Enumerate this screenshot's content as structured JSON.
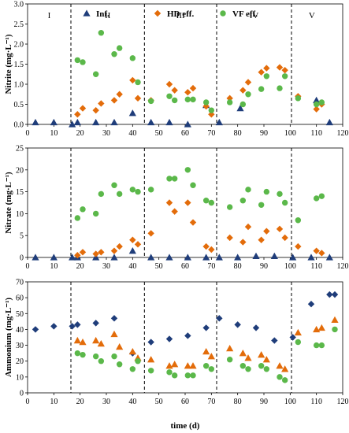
{
  "chart_data": [
    {
      "type": "scatter",
      "ylabel": "Nitrite (mg·L⁻¹)",
      "xlim": [
        0,
        120
      ],
      "ylim": [
        0,
        3.0
      ],
      "yticks": [
        "0.0",
        "0.5",
        "1.0",
        "1.5",
        "2.0",
        "2.5",
        "3.0"
      ],
      "xticks": [
        "0",
        "10",
        "20",
        "30",
        "40",
        "50",
        "60",
        "70",
        "80",
        "90",
        "100",
        "110",
        "120"
      ],
      "phase_lines": [
        16.5,
        44.5,
        72,
        100.5
      ],
      "phase_labels": [
        "I",
        "II",
        "III",
        "IV",
        "V"
      ],
      "legend": [
        "Inf.",
        "HD eff.",
        "VF eff."
      ],
      "series": [
        {
          "name": "Inf.",
          "marker": "triangle",
          "color": "#1f3d7a",
          "x": [
            3,
            10,
            17,
            19,
            26,
            33,
            40,
            47,
            54,
            61,
            68,
            73,
            81,
            110,
            115
          ],
          "y": [
            0.05,
            0.05,
            0.0,
            0.05,
            0.05,
            0.05,
            0.28,
            0.05,
            0.05,
            0.0,
            0.48,
            0.05,
            0.4,
            0.6,
            0.05
          ]
        },
        {
          "name": "HD eff.",
          "marker": "diamond",
          "color": "#e36c0a",
          "x": [
            19,
            21,
            26,
            28,
            33,
            35,
            40,
            42,
            47,
            54,
            56,
            61,
            63,
            68,
            70,
            77,
            82,
            84,
            89,
            91,
            96,
            98,
            103,
            110,
            112
          ],
          "y": [
            0.25,
            0.4,
            0.35,
            0.52,
            0.6,
            0.75,
            1.1,
            0.65,
            0.6,
            1.0,
            0.85,
            0.8,
            0.9,
            0.45,
            0.25,
            0.65,
            0.85,
            1.05,
            1.3,
            1.4,
            1.42,
            1.35,
            0.7,
            0.38,
            0.5
          ]
        },
        {
          "name": "VF eff.",
          "marker": "circle",
          "color": "#5bb84a",
          "x": [
            19,
            21,
            26,
            28,
            33,
            35,
            40,
            42,
            47,
            54,
            56,
            61,
            63,
            68,
            70,
            77,
            82,
            84,
            89,
            91,
            96,
            98,
            103,
            110,
            112
          ],
          "y": [
            1.6,
            1.55,
            1.25,
            2.28,
            1.75,
            1.9,
            1.65,
            1.05,
            0.58,
            0.7,
            0.6,
            0.62,
            0.62,
            0.55,
            0.35,
            0.55,
            0.5,
            0.75,
            0.88,
            1.2,
            0.9,
            1.2,
            0.65,
            0.5,
            0.55
          ]
        }
      ]
    },
    {
      "type": "scatter",
      "ylabel": "Nitrate (mg·L⁻¹)",
      "xlim": [
        0,
        120
      ],
      "ylim": [
        0,
        25
      ],
      "yticks": [
        "0",
        "5",
        "10",
        "15",
        "20",
        "25"
      ],
      "xticks": [
        "0",
        "10",
        "20",
        "30",
        "40",
        "50",
        "60",
        "70",
        "80",
        "90",
        "100",
        "110",
        "120"
      ],
      "phase_lines": [
        16.5,
        44.5,
        72,
        100.5
      ],
      "series": [
        {
          "name": "Inf.",
          "marker": "triangle",
          "color": "#1f3d7a",
          "x": [
            3,
            10,
            17,
            19,
            26,
            33,
            40,
            47,
            54,
            61,
            68,
            73,
            80,
            87,
            94,
            101,
            108,
            115
          ],
          "y": [
            0,
            0,
            0,
            0,
            0,
            0,
            1.5,
            0,
            0,
            0,
            0,
            0,
            0,
            0.3,
            0.3,
            0,
            0,
            0
          ]
        },
        {
          "name": "HD eff.",
          "marker": "diamond",
          "color": "#e36c0a",
          "x": [
            19,
            21,
            26,
            28,
            33,
            35,
            40,
            42,
            47,
            54,
            56,
            61,
            63,
            68,
            70,
            77,
            82,
            84,
            89,
            91,
            96,
            98,
            103,
            110,
            112
          ],
          "y": [
            0.5,
            1.2,
            0.8,
            1.2,
            1.5,
            2.5,
            4.0,
            3.0,
            5.5,
            12.5,
            10.5,
            12.5,
            8.0,
            2.5,
            1.8,
            4.5,
            3.5,
            7.0,
            4.0,
            6.0,
            6.5,
            4.5,
            2.5,
            1.5,
            1.0
          ]
        },
        {
          "name": "VF eff.",
          "marker": "circle",
          "color": "#5bb84a",
          "x": [
            19,
            21,
            26,
            28,
            33,
            35,
            40,
            42,
            47,
            54,
            56,
            61,
            63,
            68,
            70,
            77,
            82,
            84,
            89,
            91,
            96,
            98,
            103,
            110,
            112
          ],
          "y": [
            9.0,
            11.0,
            10.0,
            14.5,
            16.5,
            14.5,
            15.5,
            15.0,
            15.5,
            18.0,
            18.0,
            20.0,
            16.5,
            13.0,
            12.5,
            11.5,
            13.0,
            15.5,
            12.0,
            15.0,
            14.5,
            12.5,
            8.5,
            13.5,
            14.0
          ]
        }
      ]
    },
    {
      "type": "scatter",
      "ylabel": "Ammonium (mg·L⁻¹)",
      "xlabel": "time (d)",
      "xlim": [
        0,
        120
      ],
      "ylim": [
        0,
        70
      ],
      "yticks": [
        "0",
        "10",
        "20",
        "30",
        "40",
        "50",
        "60",
        "70"
      ],
      "xticks": [
        "0",
        "10",
        "20",
        "30",
        "40",
        "50",
        "60",
        "70",
        "80",
        "90",
        "100",
        "110",
        "120"
      ],
      "phase_lines": [
        16.5,
        44.5,
        72,
        100.5
      ],
      "series": [
        {
          "name": "Inf.",
          "marker": "diamond",
          "color": "#1f3d7a",
          "x": [
            3,
            10,
            17,
            19,
            26,
            33,
            40,
            47,
            54,
            61,
            68,
            73,
            80,
            87,
            94,
            101,
            108,
            115,
            117
          ],
          "y": [
            40,
            42,
            42,
            43,
            44,
            47,
            25,
            32,
            34,
            36,
            41,
            47,
            43,
            41,
            33,
            35,
            56,
            62,
            62
          ]
        },
        {
          "name": "HD eff.",
          "marker": "triangle",
          "color": "#e36c0a",
          "x": [
            19,
            21,
            26,
            28,
            33,
            35,
            40,
            42,
            47,
            54,
            56,
            61,
            63,
            68,
            70,
            77,
            82,
            84,
            89,
            91,
            96,
            98,
            103,
            110,
            112,
            117
          ],
          "y": [
            33,
            32,
            33,
            31,
            37,
            29,
            26,
            22,
            21,
            17,
            18,
            17,
            17,
            26,
            23,
            28,
            25,
            22,
            24,
            21,
            17,
            15,
            38,
            40,
            41,
            46
          ]
        },
        {
          "name": "VF eff.",
          "marker": "circle",
          "color": "#5bb84a",
          "x": [
            19,
            21,
            26,
            28,
            33,
            35,
            40,
            42,
            47,
            54,
            56,
            61,
            63,
            68,
            70,
            77,
            82,
            84,
            89,
            91,
            96,
            98,
            103,
            110,
            112,
            117
          ],
          "y": [
            25,
            24,
            23,
            20,
            23,
            18,
            15,
            20,
            14,
            13,
            11,
            11,
            11,
            17,
            15,
            21,
            17,
            15,
            17,
            15,
            10,
            8,
            32,
            30,
            30,
            40
          ]
        }
      ]
    }
  ]
}
